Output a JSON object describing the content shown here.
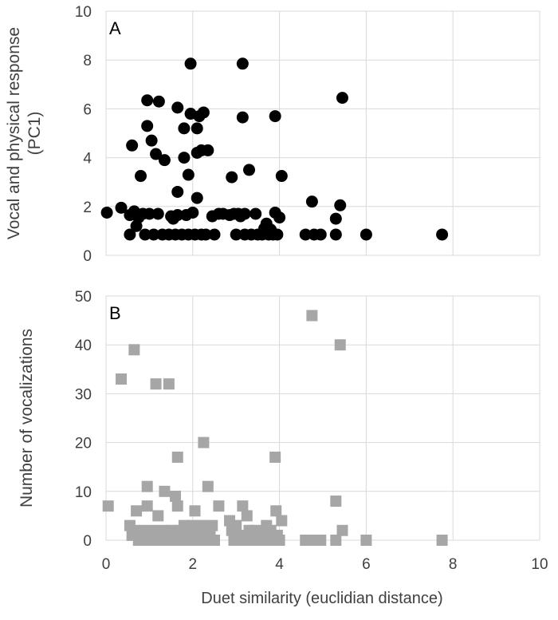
{
  "xlabel": "Duet similarity (euclidian distance)",
  "chart_data": [
    {
      "type": "scatter",
      "panel_label": "A",
      "ylabel_lines": [
        "Vocal and physical response",
        "(PC1)"
      ],
      "xlim": [
        0,
        10
      ],
      "ylim": [
        0,
        10
      ],
      "x_ticks": [
        0,
        2,
        4,
        6,
        8,
        10
      ],
      "y_ticks": [
        0,
        2,
        4,
        6,
        8,
        10
      ],
      "grid": true,
      "marker": "circle",
      "color": "#000000",
      "points": [
        {
          "x": 0.02,
          "y": 1.75
        },
        {
          "x": 0.35,
          "y": 1.95
        },
        {
          "x": 0.55,
          "y": 0.85
        },
        {
          "x": 0.55,
          "y": 1.65
        },
        {
          "x": 0.6,
          "y": 4.5
        },
        {
          "x": 0.65,
          "y": 1.8
        },
        {
          "x": 0.7,
          "y": 1.2
        },
        {
          "x": 0.75,
          "y": 1.55
        },
        {
          "x": 0.8,
          "y": 3.25
        },
        {
          "x": 0.85,
          "y": 1.7
        },
        {
          "x": 0.9,
          "y": 0.85
        },
        {
          "x": 0.95,
          "y": 5.3
        },
        {
          "x": 0.95,
          "y": 6.35
        },
        {
          "x": 1.0,
          "y": 1.7
        },
        {
          "x": 1.05,
          "y": 4.7
        },
        {
          "x": 1.1,
          "y": 0.85
        },
        {
          "x": 1.15,
          "y": 4.15
        },
        {
          "x": 1.2,
          "y": 1.7
        },
        {
          "x": 1.22,
          "y": 6.3
        },
        {
          "x": 1.3,
          "y": 0.85
        },
        {
          "x": 1.35,
          "y": 3.9
        },
        {
          "x": 1.45,
          "y": 0.85
        },
        {
          "x": 1.5,
          "y": 1.6
        },
        {
          "x": 1.55,
          "y": 1.5
        },
        {
          "x": 1.6,
          "y": 0.85
        },
        {
          "x": 1.65,
          "y": 1.65
        },
        {
          "x": 1.65,
          "y": 2.6
        },
        {
          "x": 1.65,
          "y": 6.05
        },
        {
          "x": 1.75,
          "y": 0.85
        },
        {
          "x": 1.8,
          "y": 4.0
        },
        {
          "x": 1.8,
          "y": 5.2
        },
        {
          "x": 1.85,
          "y": 1.65
        },
        {
          "x": 1.9,
          "y": 0.85
        },
        {
          "x": 1.9,
          "y": 3.3
        },
        {
          "x": 1.95,
          "y": 7.85
        },
        {
          "x": 1.95,
          "y": 5.8
        },
        {
          "x": 2.0,
          "y": 1.75
        },
        {
          "x": 2.05,
          "y": 0.85
        },
        {
          "x": 2.1,
          "y": 5.2
        },
        {
          "x": 2.1,
          "y": 4.2
        },
        {
          "x": 2.1,
          "y": 2.35
        },
        {
          "x": 2.15,
          "y": 5.7
        },
        {
          "x": 2.2,
          "y": 0.85
        },
        {
          "x": 2.2,
          "y": 4.3
        },
        {
          "x": 2.25,
          "y": 5.85
        },
        {
          "x": 2.3,
          "y": 0.85
        },
        {
          "x": 2.35,
          "y": 4.3
        },
        {
          "x": 2.45,
          "y": 1.6
        },
        {
          "x": 2.5,
          "y": 0.85
        },
        {
          "x": 2.6,
          "y": 1.7
        },
        {
          "x": 2.7,
          "y": 1.7
        },
        {
          "x": 2.85,
          "y": 1.65
        },
        {
          "x": 2.9,
          "y": 3.2
        },
        {
          "x": 2.95,
          "y": 1.7
        },
        {
          "x": 3.0,
          "y": 0.85
        },
        {
          "x": 3.05,
          "y": 1.7
        },
        {
          "x": 3.1,
          "y": 1.6
        },
        {
          "x": 3.15,
          "y": 5.65
        },
        {
          "x": 3.15,
          "y": 7.85
        },
        {
          "x": 3.2,
          "y": 0.85
        },
        {
          "x": 3.2,
          "y": 1.7
        },
        {
          "x": 3.3,
          "y": 3.5
        },
        {
          "x": 3.35,
          "y": 0.85
        },
        {
          "x": 3.45,
          "y": 1.7
        },
        {
          "x": 3.5,
          "y": 0.85
        },
        {
          "x": 3.6,
          "y": 0.85
        },
        {
          "x": 3.65,
          "y": 1.1
        },
        {
          "x": 3.7,
          "y": 1.3
        },
        {
          "x": 3.75,
          "y": 0.85
        },
        {
          "x": 3.8,
          "y": 1.05
        },
        {
          "x": 3.85,
          "y": 0.85
        },
        {
          "x": 3.9,
          "y": 5.7
        },
        {
          "x": 3.9,
          "y": 1.75
        },
        {
          "x": 3.95,
          "y": 0.85
        },
        {
          "x": 4.0,
          "y": 1.55
        },
        {
          "x": 4.05,
          "y": 3.25
        },
        {
          "x": 4.6,
          "y": 0.85
        },
        {
          "x": 4.75,
          "y": 2.2
        },
        {
          "x": 4.8,
          "y": 0.85
        },
        {
          "x": 4.95,
          "y": 0.85
        },
        {
          "x": 5.3,
          "y": 0.85
        },
        {
          "x": 5.3,
          "y": 1.5
        },
        {
          "x": 5.4,
          "y": 2.05
        },
        {
          "x": 5.45,
          "y": 6.45
        },
        {
          "x": 6.0,
          "y": 0.85
        },
        {
          "x": 7.75,
          "y": 0.85
        }
      ]
    },
    {
      "type": "scatter",
      "panel_label": "B",
      "ylabel_lines": [
        "Number of vocalizations"
      ],
      "xlim": [
        0,
        10
      ],
      "ylim": [
        0,
        50
      ],
      "x_ticks": [
        0,
        2,
        4,
        6,
        8,
        10
      ],
      "y_ticks": [
        0,
        10,
        20,
        30,
        40,
        50
      ],
      "x_tick_labels": [
        "0",
        "2",
        "4",
        "6",
        "8",
        "10"
      ],
      "grid": true,
      "marker": "square",
      "color": "#a6a6a6",
      "points": [
        {
          "x": 0.05,
          "y": 7
        },
        {
          "x": 0.35,
          "y": 33
        },
        {
          "x": 0.55,
          "y": 3
        },
        {
          "x": 0.6,
          "y": 1
        },
        {
          "x": 0.65,
          "y": 39
        },
        {
          "x": 0.7,
          "y": 6
        },
        {
          "x": 0.75,
          "y": 0
        },
        {
          "x": 0.8,
          "y": 2
        },
        {
          "x": 0.85,
          "y": 0
        },
        {
          "x": 0.9,
          "y": 1
        },
        {
          "x": 0.95,
          "y": 11
        },
        {
          "x": 0.95,
          "y": 7
        },
        {
          "x": 1.0,
          "y": 0
        },
        {
          "x": 1.05,
          "y": 2
        },
        {
          "x": 1.1,
          "y": 0
        },
        {
          "x": 1.15,
          "y": 32
        },
        {
          "x": 1.2,
          "y": 5
        },
        {
          "x": 1.25,
          "y": 0
        },
        {
          "x": 1.3,
          "y": 2
        },
        {
          "x": 1.35,
          "y": 10
        },
        {
          "x": 1.4,
          "y": 0
        },
        {
          "x": 1.45,
          "y": 32
        },
        {
          "x": 1.5,
          "y": 2
        },
        {
          "x": 1.55,
          "y": 0
        },
        {
          "x": 1.6,
          "y": 9
        },
        {
          "x": 1.65,
          "y": 17
        },
        {
          "x": 1.65,
          "y": 7
        },
        {
          "x": 1.7,
          "y": 2
        },
        {
          "x": 1.75,
          "y": 0
        },
        {
          "x": 1.8,
          "y": 3
        },
        {
          "x": 1.85,
          "y": 0
        },
        {
          "x": 1.9,
          "y": 1
        },
        {
          "x": 1.95,
          "y": 0
        },
        {
          "x": 2.0,
          "y": 3
        },
        {
          "x": 2.05,
          "y": 6
        },
        {
          "x": 2.1,
          "y": 0
        },
        {
          "x": 2.15,
          "y": 2
        },
        {
          "x": 2.2,
          "y": 3
        },
        {
          "x": 2.25,
          "y": 20
        },
        {
          "x": 2.3,
          "y": 0
        },
        {
          "x": 2.35,
          "y": 11
        },
        {
          "x": 2.4,
          "y": 2
        },
        {
          "x": 2.45,
          "y": 3
        },
        {
          "x": 2.5,
          "y": 0
        },
        {
          "x": 2.6,
          "y": 7
        },
        {
          "x": 2.85,
          "y": 4
        },
        {
          "x": 2.9,
          "y": 2
        },
        {
          "x": 2.95,
          "y": 0
        },
        {
          "x": 3.0,
          "y": 3
        },
        {
          "x": 3.05,
          "y": 0
        },
        {
          "x": 3.1,
          "y": 1
        },
        {
          "x": 3.15,
          "y": 7
        },
        {
          "x": 3.2,
          "y": 0
        },
        {
          "x": 3.25,
          "y": 5
        },
        {
          "x": 3.3,
          "y": 2
        },
        {
          "x": 3.35,
          "y": 0
        },
        {
          "x": 3.45,
          "y": 2
        },
        {
          "x": 3.5,
          "y": 0
        },
        {
          "x": 3.6,
          "y": 1
        },
        {
          "x": 3.7,
          "y": 3
        },
        {
          "x": 3.75,
          "y": 0
        },
        {
          "x": 3.8,
          "y": 2
        },
        {
          "x": 3.85,
          "y": 0
        },
        {
          "x": 3.9,
          "y": 17
        },
        {
          "x": 3.92,
          "y": 6
        },
        {
          "x": 3.95,
          "y": 1
        },
        {
          "x": 4.0,
          "y": 0
        },
        {
          "x": 4.05,
          "y": 4
        },
        {
          "x": 4.6,
          "y": 0
        },
        {
          "x": 4.75,
          "y": 46
        },
        {
          "x": 4.8,
          "y": 0
        },
        {
          "x": 4.95,
          "y": 0
        },
        {
          "x": 5.3,
          "y": 8
        },
        {
          "x": 5.3,
          "y": 0
        },
        {
          "x": 5.4,
          "y": 40
        },
        {
          "x": 5.45,
          "y": 2
        },
        {
          "x": 6.0,
          "y": 0
        },
        {
          "x": 7.75,
          "y": 0
        }
      ]
    }
  ]
}
